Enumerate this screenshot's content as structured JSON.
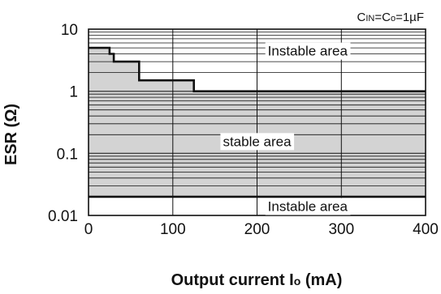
{
  "chart_data": {
    "type": "area",
    "condition": {
      "main": "C",
      "sub1": "IN",
      "mid": "=C",
      "sub2": "o",
      "tail": "=1µF"
    },
    "xlabel": {
      "prefix": "Output current I",
      "sub": "o",
      "suffix": " (mA)"
    },
    "ylabel": "ESR (Ω)",
    "x_scale": "linear",
    "y_scale": "log",
    "xlim": [
      0,
      400
    ],
    "ylim": [
      0.01,
      10
    ],
    "x_ticks": [
      {
        "value": 0,
        "label": "0"
      },
      {
        "value": 100,
        "label": "100"
      },
      {
        "value": 200,
        "label": "200"
      },
      {
        "value": 300,
        "label": "300"
      },
      {
        "value": 400,
        "label": "400"
      }
    ],
    "y_ticks": [
      {
        "value": 0.01,
        "label": "0.01"
      },
      {
        "value": 0.1,
        "label": "0.1"
      },
      {
        "value": 1,
        "label": "1"
      },
      {
        "value": 10,
        "label": "10"
      }
    ],
    "grid": true,
    "upper_boundary": {
      "x": [
        0,
        25,
        25,
        30,
        30,
        60,
        60,
        125,
        125,
        400
      ],
      "y": [
        5,
        5,
        4,
        4,
        3,
        3,
        1.5,
        1.5,
        1,
        1
      ]
    },
    "lower_boundary": {
      "x": [
        0,
        400
      ],
      "y": [
        0.02,
        0.02
      ]
    },
    "annotations": [
      {
        "text": "Instable area",
        "x": 260,
        "y": 4.3
      },
      {
        "text": "stable area",
        "x": 200,
        "y": 0.15
      },
      {
        "text": "Instable area",
        "x": 260,
        "y": 0.0135
      }
    ],
    "colors": {
      "stable_fill": "#d3d3d3",
      "line": "#111111",
      "grid": "#111111"
    }
  }
}
